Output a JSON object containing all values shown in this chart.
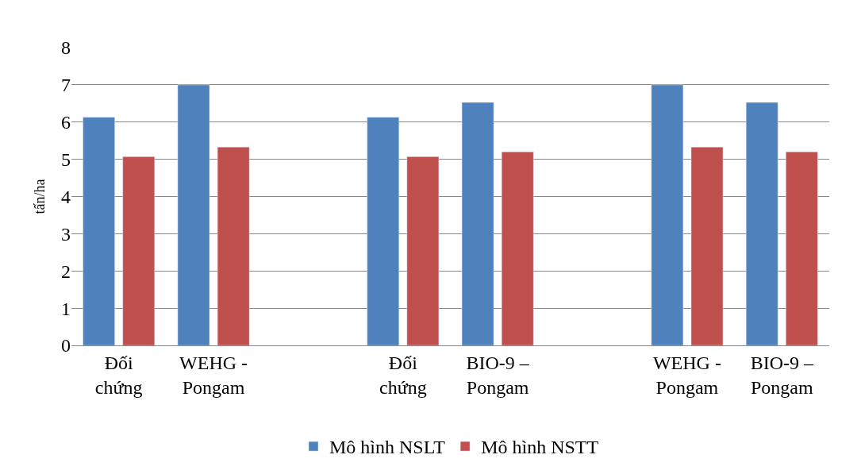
{
  "chart_data": {
    "type": "bar",
    "ylabel": "tấn/ha",
    "categories": [
      "Đối chứng",
      "WEHG - Pongam",
      null,
      "Đối chứng",
      "BIO-9 – Pongam",
      null,
      "WEHG - Pongam",
      "BIO-9 – Pongam"
    ],
    "series": [
      {
        "name": "Mô hình NSLT",
        "color": "#4f81bd",
        "values": [
          6.13,
          7.0,
          null,
          6.13,
          6.53,
          null,
          7.0,
          6.53
        ]
      },
      {
        "name": "Mô hình NSTT",
        "color": "#c0504d",
        "values": [
          5.07,
          5.33,
          null,
          5.07,
          5.2,
          null,
          5.33,
          5.2
        ]
      }
    ],
    "ylim": [
      0,
      8
    ],
    "yticks": [
      0,
      1,
      2,
      3,
      4,
      5,
      6,
      7,
      8
    ],
    "grid": "y",
    "legend": "bottom"
  }
}
